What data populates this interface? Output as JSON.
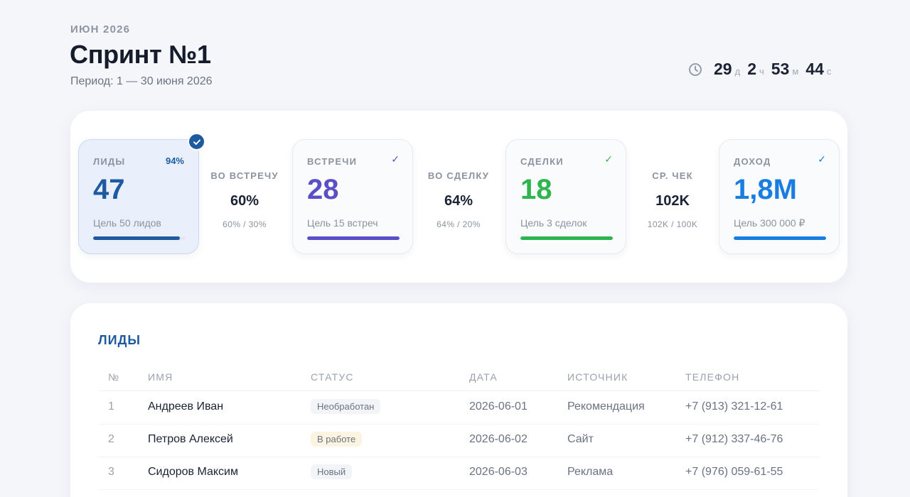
{
  "header": {
    "month": "ИЮН 2026",
    "title": "Спринт №1",
    "period": "Период: 1 — 30 июня 2026"
  },
  "timer": {
    "icon": "clock-icon",
    "days": "29",
    "days_unit": "д",
    "hours": "2",
    "hours_unit": "ч",
    "minutes": "53",
    "minutes_unit": "м",
    "seconds": "44",
    "seconds_unit": "с"
  },
  "stats": {
    "leads": {
      "label": "ЛИДЫ",
      "percent": "94%",
      "value": "47",
      "goal": "Цель 50 лидов",
      "progress": 0.94,
      "color": "#1e5aa0",
      "completed": true
    },
    "conv_meetings": {
      "label": "ВО ВСТРЕЧУ",
      "value": "60%",
      "sub": "60% / 30%"
    },
    "meetings": {
      "label": "ВСТРЕЧИ",
      "check": "✓",
      "value": "28",
      "goal": "Цель 15 встреч",
      "progress": 1.0,
      "color": "#5b4fc7"
    },
    "conv_deals": {
      "label": "ВО СДЕЛКУ",
      "value": "64%",
      "sub": "64% / 20%"
    },
    "deals": {
      "label": "СДЕЛКИ",
      "check": "✓",
      "value": "18",
      "goal": "Цель 3 сделок",
      "progress": 1.0,
      "color": "#2fb54f"
    },
    "avg_check": {
      "label": "СР. ЧЕК",
      "value": "102K",
      "sub": "102K / 100K"
    },
    "income": {
      "label": "ДОХОД",
      "check": "✓",
      "value": "1,8M",
      "goal": "Цель 300 000 ₽",
      "progress": 1.0,
      "color": "#1a7de0"
    }
  },
  "leads_table": {
    "title": "ЛИДЫ",
    "columns": [
      "№",
      "ИМЯ",
      "СТАТУС",
      "ДАТА",
      "ИСТОЧНИК",
      "ТЕЛЕФОН"
    ],
    "rows": [
      {
        "num": "1",
        "name": "Андреев Иван",
        "status": "Необработан",
        "date": "2026-06-01",
        "source": "Рекомендация",
        "phone": "+7 (913) 321-12-61"
      },
      {
        "num": "2",
        "name": "Петров Алексей",
        "status": "В работе",
        "date": "2026-06-02",
        "source": "Сайт",
        "phone": "+7 (912) 337-46-76"
      },
      {
        "num": "3",
        "name": "Сидоров Максим",
        "status": "Новый",
        "date": "2026-06-03",
        "source": "Реклама",
        "phone": "+7 (976) 059-61-55"
      }
    ]
  }
}
